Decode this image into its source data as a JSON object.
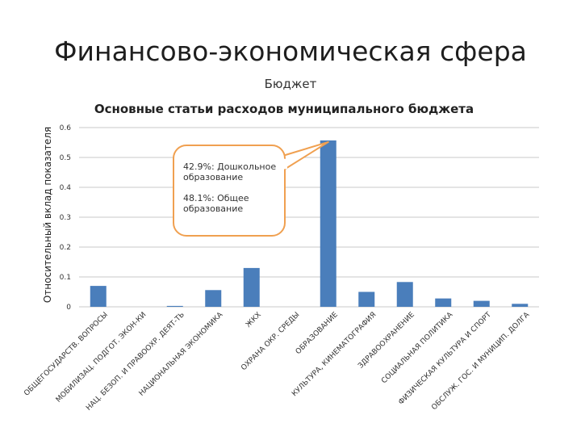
{
  "slide": {
    "title": "Финансово-экономическая сфера",
    "subtitle": "Бюджет"
  },
  "chart_data": {
    "type": "bar",
    "title": "Основные статьи расходов муниципального бюджета",
    "xlabel": "",
    "ylabel": "Относительный вклад показателя",
    "ylim": [
      0,
      0.6
    ],
    "yticks": [
      "0",
      "0.1",
      "0.2",
      "0.3",
      "0.4",
      "0.5",
      "0.6"
    ],
    "grid": true,
    "bar_color": "#4a7ebb",
    "categories": [
      "ОБЩЕГОСУДАРСТВ. ВОПРОСЫ",
      "МОБИЛИЗАЦ. ПОДГОТ. ЭКОН-КИ",
      "НАЦ. БЕЗОП. И ПРАВООХР. ДЕЯТ-ТЬ",
      "НАЦИОНАЛЬНАЯ ЭКОНОМИКА",
      "ЖКХ",
      "ОХРАНА ОКР. СРЕДЫ",
      "ОБРАЗОВАНИЕ",
      "КУЛЬТУРА, КИНЕМАТОГРАФИЯ",
      "ЗДРАВООХРАНЕНИЕ",
      "СОЦИАЛЬНАЯ ПОЛИТИКА",
      "ФИЗИЧЕСКАЯ КУЛЬТУРА И СПОРТ",
      "ОБСЛУЖ. ГОС. И МУНИЦИП. ДОЛГА"
    ],
    "values": [
      0.07,
      0,
      0.003,
      0.056,
      0.13,
      0,
      0.557,
      0.05,
      0.083,
      0.028,
      0.02,
      0.01
    ],
    "annotation": {
      "lines": [
        "42.9%: Дошкольное",
        "образование",
        "",
        "48.1%: Общее",
        "образование"
      ],
      "border_color": "#f0a050",
      "target_category": "ОБРАЗОВАНИЕ"
    }
  }
}
